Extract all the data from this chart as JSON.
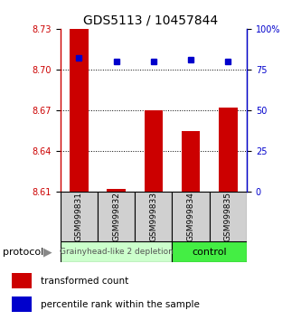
{
  "title": "GDS5113 / 10457844",
  "samples": [
    "GSM999831",
    "GSM999832",
    "GSM999833",
    "GSM999834",
    "GSM999835"
  ],
  "bar_values": [
    8.73,
    8.612,
    8.67,
    8.655,
    8.672
  ],
  "bar_base": 8.61,
  "percentile_values": [
    82,
    80,
    80,
    81,
    80
  ],
  "ylim_left": [
    8.61,
    8.73
  ],
  "ylim_right": [
    0,
    100
  ],
  "yticks_left": [
    8.61,
    8.64,
    8.67,
    8.7,
    8.73
  ],
  "yticks_right": [
    0,
    25,
    50,
    75,
    100
  ],
  "bar_color": "#cc0000",
  "percentile_color": "#0000cc",
  "group1_label": "Grainyhead-like 2 depletion",
  "group2_label": "control",
  "group1_color": "#ccffcc",
  "group2_color": "#44ee44",
  "group1_indices": [
    0,
    1,
    2
  ],
  "group2_indices": [
    3,
    4
  ],
  "legend_bar_label": "transformed count",
  "legend_pct_label": "percentile rank within the sample",
  "protocol_label": "protocol",
  "sample_box_color": "#d0d0d0"
}
